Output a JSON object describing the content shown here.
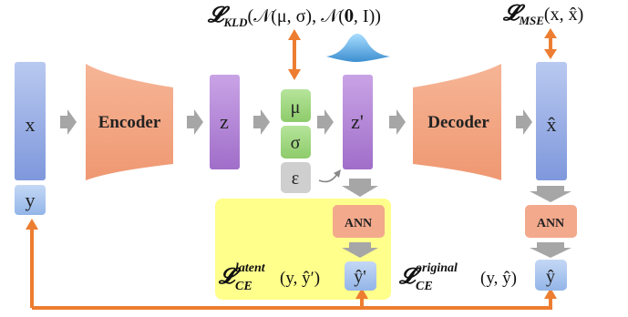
{
  "nodes": {
    "x": "x",
    "y": "y",
    "encoder": "Encoder",
    "z": "z",
    "mu": "μ",
    "sigma": "σ",
    "epsilon": "ε",
    "z_prime": "z'",
    "decoder": "Decoder",
    "x_hat": "x̂",
    "ann_latent": "ANN",
    "ann_original": "ANN",
    "y_hat_latent": "ŷ'",
    "y_hat_original": "ŷ"
  },
  "losses": {
    "kld": {
      "symbol": "𝓛",
      "subscript": "KLD",
      "args": "(𝒩(μ, σ), 𝒩(𝟎, I))"
    },
    "mse": {
      "symbol": "𝓛",
      "subscript": "MSE",
      "args": "(x, x̂)"
    },
    "ce_latent": {
      "symbol": "𝓛",
      "superscript": "latent",
      "subscript": "CE",
      "args": "(y, ŷ′)"
    },
    "ce_original": {
      "symbol": "𝓛",
      "superscript": "original",
      "subscript": "CE",
      "args": "(y, ŷ)"
    }
  },
  "colors": {
    "blue_box": "#8fa6e0",
    "blue_light": "#b7c9ee",
    "orange_block": "#f3a57f",
    "purple_box": "#b07fd4",
    "green_box": "#9bd47a",
    "gray_box": "#cfcfcf",
    "ann_box": "#f3a98c",
    "yhat_box": "#9ec4ef",
    "highlight": "#ffff8c",
    "arrow_orange": "#ed7d31",
    "arrow_gray": "#a6a6a6"
  },
  "icons": [
    "gaussian-distribution-icon"
  ]
}
